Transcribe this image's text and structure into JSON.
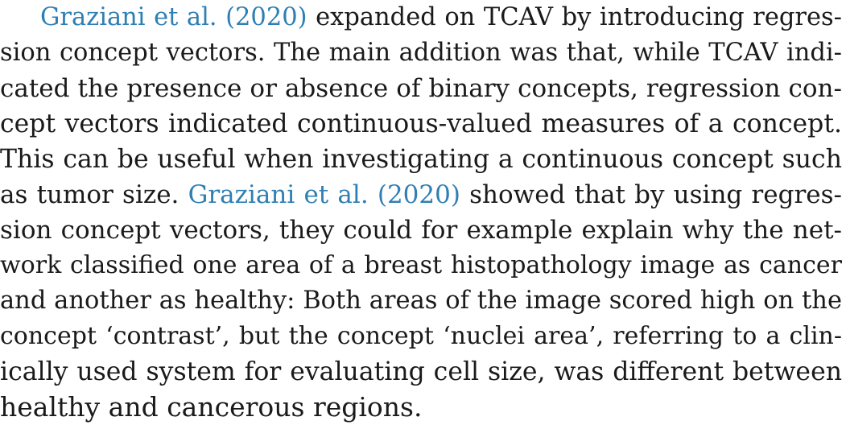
{
  "paragraph": {
    "lines": [
      {
        "pre": "",
        "cite": "Graziani et al. (2020)",
        "post": " expanded on TCAV by introducing regres-"
      },
      {
        "pre": "sion concept vectors. The main addition was that, while TCAV indi-",
        "cite": "",
        "post": ""
      },
      {
        "pre": "cated the presence or absence of binary concepts, regression con-",
        "cite": "",
        "post": ""
      },
      {
        "pre": "cept vectors indicated continuous-valued measures of a concept.",
        "cite": "",
        "post": ""
      },
      {
        "pre": "This can be useful when investigating a continuous concept such",
        "cite": "",
        "post": ""
      },
      {
        "pre": "as tumor size. ",
        "cite": "Graziani et al. (2020)",
        "post": " showed that by using regres-"
      },
      {
        "pre": "sion concept vectors, they could for example explain why the net-",
        "cite": "",
        "post": ""
      },
      {
        "pre": "work classified one area of a breast histopathology image as cancer",
        "cite": "",
        "post": ""
      },
      {
        "pre": "and another as healthy: Both areas of the image scored high on the",
        "cite": "",
        "post": ""
      },
      {
        "pre": "concept ‘contrast’, but the concept ‘nuclei area’, referring to a clin-",
        "cite": "",
        "post": ""
      },
      {
        "pre": "ically used system for evaluating cell size, was different between",
        "cite": "",
        "post": ""
      },
      {
        "pre": "healthy and cancerous regions.",
        "cite": "",
        "post": ""
      }
    ]
  },
  "colors": {
    "text": "#1a1a1a",
    "citation_link": "#2f7fb3",
    "background": "#ffffff"
  }
}
